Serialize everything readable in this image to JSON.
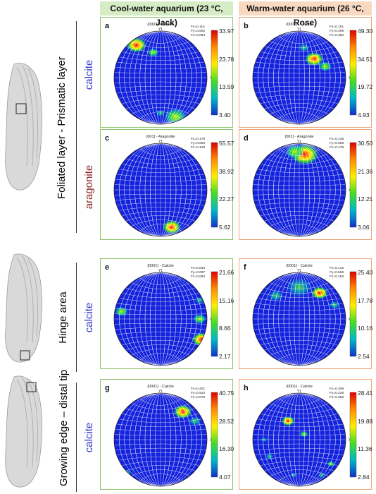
{
  "columns": {
    "cool": "Cool-water aquarium (23 °C, Jack)",
    "warm": "Warm-water aquarium (26 °C, Rose)",
    "cool_color": "#d6ecc5",
    "warm_color": "#fad9c3",
    "cool_border": "#8cc46c",
    "warm_border": "#eda57c"
  },
  "regions": {
    "foliated": "Foliated layer - Prismatic layer",
    "hinge": "Hinge area",
    "growing": "Growing edge – distal tip"
  },
  "phases": {
    "calcite": "calcite",
    "aragonite": "aragonite",
    "calcite_color": "#2c37c8",
    "aragonite_color": "#8a1f1f"
  },
  "axis": {
    "y": "Y1",
    "x": "X1"
  },
  "panels": [
    {
      "letter": "a",
      "title": "{0001} - Calcite",
      "f": [
        "Fx=0.114",
        "Fy=0.802",
        "Fz=0.084"
      ],
      "scale": [
        "33.97",
        "23.78",
        "13.59",
        "3.40"
      ],
      "spots": [
        [
          0.24,
          0.15,
          0.22,
          1.0
        ],
        [
          0.42,
          0.23,
          0.12,
          0.6
        ],
        [
          0.66,
          0.92,
          0.24,
          0.85
        ],
        [
          0.5,
          0.88,
          0.1,
          0.5
        ]
      ]
    },
    {
      "letter": "b",
      "title": "{0001} - Calcite",
      "f": [
        "Fx=0.151",
        "Fy=0.499",
        "Fz=0.350"
      ],
      "scale": [
        "49.30",
        "34.51",
        "19.72",
        "4.93"
      ],
      "spots": [
        [
          0.66,
          0.3,
          0.2,
          1.0
        ],
        [
          0.78,
          0.38,
          0.14,
          0.8
        ],
        [
          0.55,
          0.18,
          0.12,
          0.45
        ]
      ]
    },
    {
      "letter": "c",
      "title": "{001} - Aragonite",
      "f": [
        "Fx=0.179",
        "Fy=0.693",
        "Fz=0.128"
      ],
      "scale": [
        "55.57",
        "38.92",
        "22.27",
        "5.62"
      ],
      "spots": [
        [
          0.62,
          0.9,
          0.2,
          1.0
        ]
      ]
    },
    {
      "letter": "d",
      "title": "{001} - Aragonite",
      "f": [
        "Fx=0.136",
        "Fy=0.689",
        "Fz=0.175"
      ],
      "scale": [
        "30.50",
        "21.36",
        "12.21",
        "3.06"
      ],
      "spots": [
        [
          0.56,
          0.12,
          0.3,
          1.0
        ],
        [
          0.45,
          0.09,
          0.2,
          0.6
        ]
      ]
    },
    {
      "letter": "e",
      "title": "{0001} - Calcite",
      "f": [
        "Fx=0.810",
        "Fy=0.097",
        "Fz=0.094"
      ],
      "scale": [
        "21.66",
        "15.16",
        "8.66",
        "2.17"
      ],
      "spots": [
        [
          0.94,
          0.72,
          0.2,
          1.0
        ],
        [
          0.92,
          0.5,
          0.14,
          0.6
        ],
        [
          0.08,
          0.42,
          0.14,
          0.6
        ],
        [
          0.92,
          0.3,
          0.1,
          0.4
        ]
      ]
    },
    {
      "letter": "f",
      "title": "{0001} - Calcite",
      "f": [
        "Fx=0.142",
        "Fy=0.656",
        "Fz=0.162"
      ],
      "scale": [
        "25.40",
        "17.78",
        "10.16",
        "2.54"
      ],
      "spots": [
        [
          0.72,
          0.22,
          0.18,
          1.0
        ],
        [
          0.5,
          0.16,
          0.28,
          0.45
        ],
        [
          0.25,
          0.25,
          0.16,
          0.45
        ],
        [
          0.88,
          0.35,
          0.12,
          0.35
        ]
      ]
    },
    {
      "letter": "g",
      "title": "{0001} - Calcite",
      "f": [
        "Fx=0.401",
        "Fy=0.524",
        "Fz=0.075"
      ],
      "scale": [
        "40.75",
        "28.52",
        "16.30",
        "4.07"
      ],
      "spots": [
        [
          0.74,
          0.2,
          0.2,
          1.0
        ],
        [
          0.87,
          0.3,
          0.14,
          0.5
        ],
        [
          0.13,
          0.86,
          0.1,
          0.55
        ]
      ]
    },
    {
      "letter": "h",
      "title": "{0001} - Calcite",
      "f": [
        "Fx=0.408",
        "Fy=0.236",
        "Fz=0.356"
      ],
      "scale": [
        "28.41",
        "19.88",
        "11.36",
        "2.84"
      ],
      "spots": [
        [
          0.38,
          0.3,
          0.14,
          1.0
        ],
        [
          0.55,
          0.44,
          0.09,
          0.6
        ],
        [
          0.84,
          0.76,
          0.08,
          0.55
        ],
        [
          0.18,
          0.68,
          0.09,
          0.5
        ],
        [
          0.44,
          0.88,
          0.07,
          0.45
        ],
        [
          0.74,
          0.88,
          0.08,
          0.45
        ],
        [
          0.12,
          0.5,
          0.07,
          0.45
        ]
      ]
    }
  ]
}
